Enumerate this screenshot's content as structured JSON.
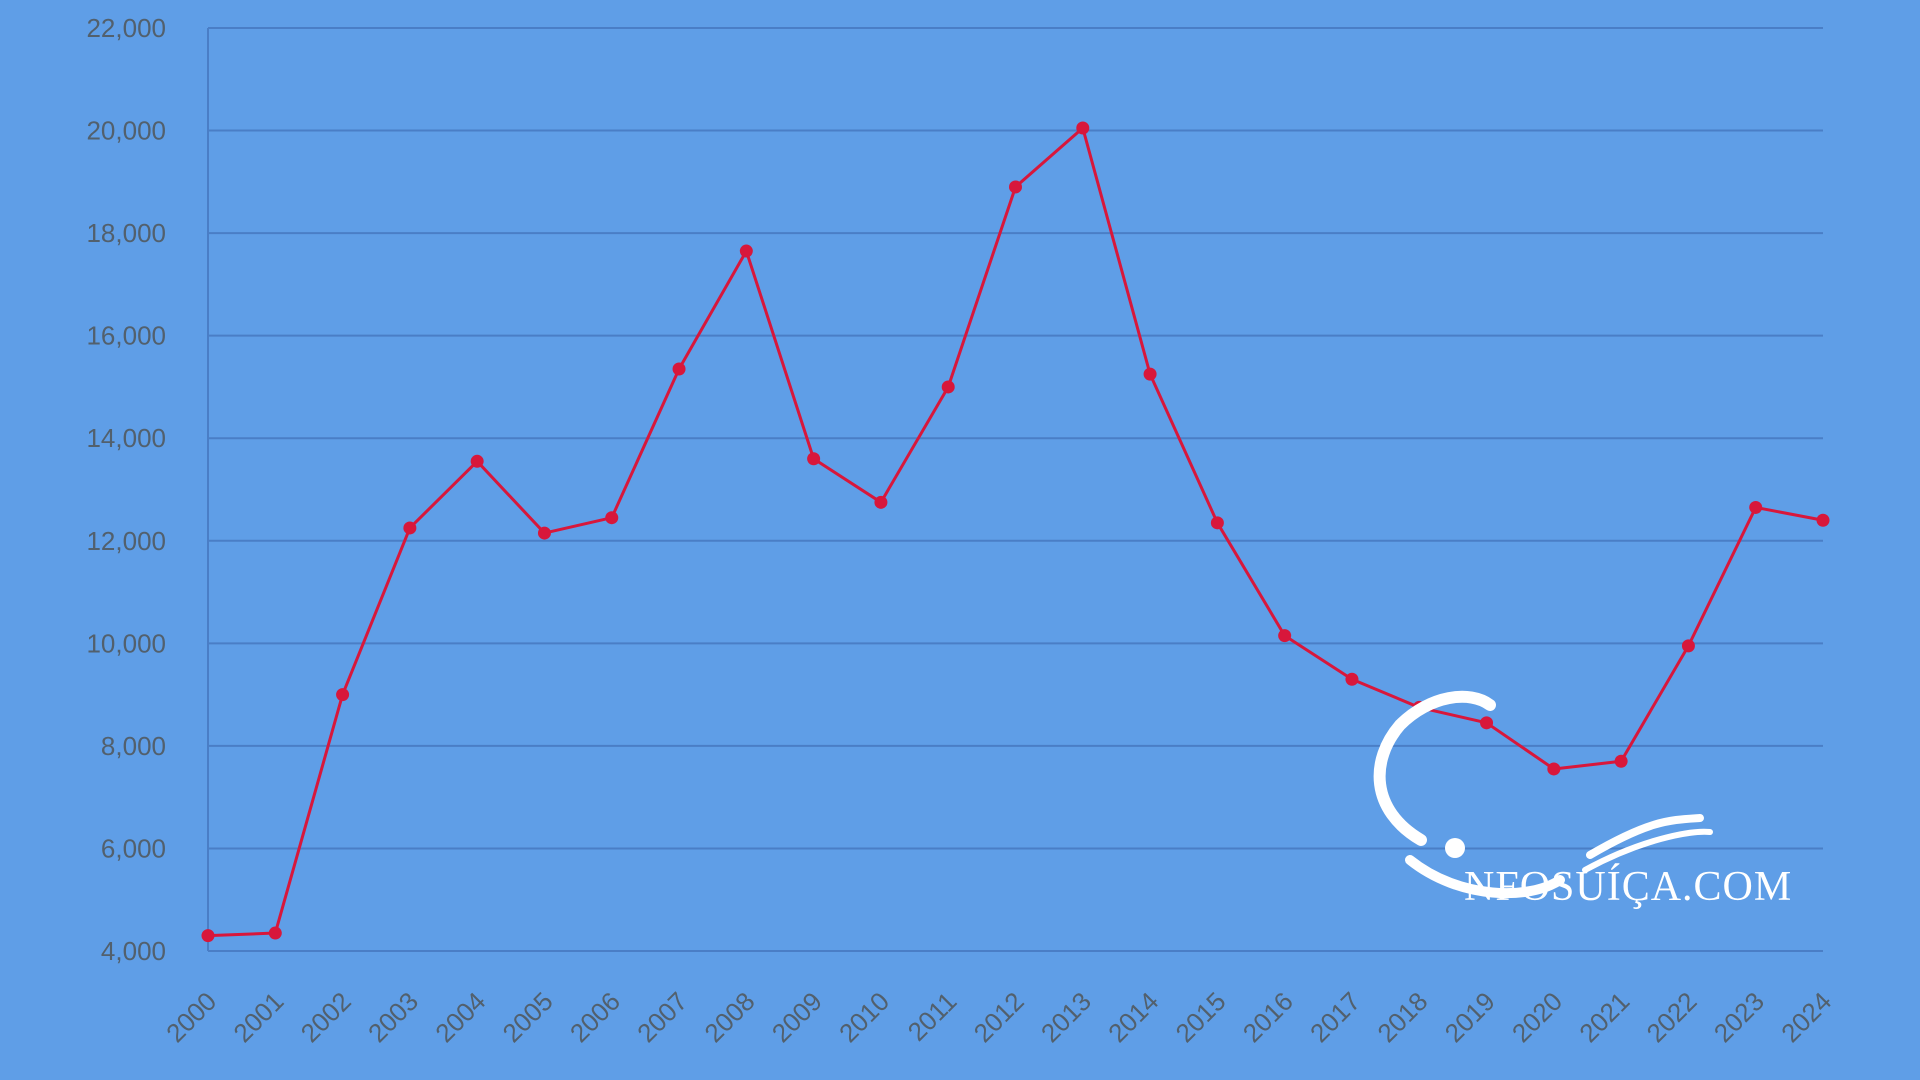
{
  "chart_data": {
    "type": "line",
    "title": "",
    "xlabel": "",
    "ylabel": "",
    "categories": [
      "2000",
      "2001",
      "2002",
      "2003",
      "2004",
      "2005",
      "2006",
      "2007",
      "2008",
      "2009",
      "2010",
      "2011",
      "2012",
      "2013",
      "2014",
      "2015",
      "2016",
      "2017",
      "2018",
      "2019",
      "2020",
      "2021",
      "2022",
      "2023",
      "2024"
    ],
    "series": [
      {
        "name": "",
        "values": [
          4300,
          4350,
          9000,
          12250,
          13550,
          12150,
          12450,
          15350,
          17650,
          13600,
          12750,
          15000,
          18900,
          20050,
          15250,
          12350,
          10150,
          9300,
          8750,
          8450,
          7550,
          7700,
          9950,
          12650,
          12400
        ]
      }
    ],
    "ylim": [
      4000,
      22000
    ],
    "yticks": [
      "4,000",
      "6,000",
      "8,000",
      "10,000",
      "12,000",
      "14,000",
      "16,000",
      "18,000",
      "20,000",
      "22,000"
    ],
    "grid": true,
    "legend": "none",
    "colors": {
      "background": "#5f9ee7",
      "line": "#d8173b",
      "grid": "#4a7ec6",
      "labels": "#52606d"
    }
  },
  "watermark": {
    "text": "NFOSUÍÇA.COM",
    "icon": "infosuica-logo-icon"
  }
}
